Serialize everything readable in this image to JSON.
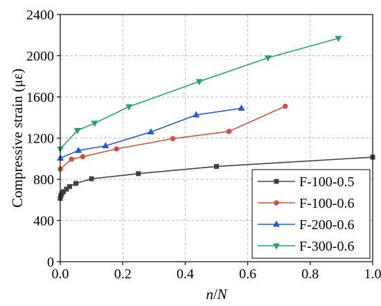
{
  "chart_data": {
    "type": "line",
    "title": "",
    "xlabel": "n/N",
    "ylabel": "Compressive strain (με)",
    "xlim": [
      0,
      1.0
    ],
    "ylim": [
      0,
      2400
    ],
    "x_ticks": [
      0.0,
      0.2,
      0.4,
      0.6,
      0.8,
      1.0
    ],
    "x_tick_labels": [
      "0.0",
      "0.2",
      "0.4",
      "0.6",
      "0.8",
      "1.0"
    ],
    "y_ticks": [
      0,
      400,
      800,
      1200,
      1600,
      2000,
      2400
    ],
    "y_tick_labels": [
      "0",
      "400",
      "800",
      "1200",
      "1600",
      "2000",
      "2400"
    ],
    "grid": true,
    "legend_position": "bottom-right",
    "series": [
      {
        "name": "F-100-0.5",
        "color": "#404040",
        "marker": "square",
        "x": [
          0.0,
          0.002,
          0.005,
          0.01,
          0.02,
          0.03,
          0.05,
          0.1,
          0.25,
          0.5,
          1.0
        ],
        "y": [
          615,
          640,
          660,
          680,
          705,
          730,
          760,
          805,
          855,
          925,
          1015
        ]
      },
      {
        "name": "F-100-0.6",
        "color": "#d2503c",
        "marker": "circle",
        "x": [
          0.0,
          0.036,
          0.072,
          0.18,
          0.36,
          0.54,
          0.72
        ],
        "y": [
          900,
          995,
          1020,
          1095,
          1195,
          1265,
          1510
        ]
      },
      {
        "name": "F-200-0.6",
        "color": "#1e5ae6",
        "marker": "triangle-up",
        "x": [
          0.0,
          0.058,
          0.145,
          0.29,
          0.435,
          0.58
        ],
        "y": [
          1005,
          1080,
          1125,
          1260,
          1425,
          1490
        ]
      },
      {
        "name": "F-300-0.6",
        "color": "#23a46a",
        "marker": "triangle-down",
        "x": [
          0.0,
          0.055,
          0.11,
          0.22,
          0.445,
          0.665,
          0.89
        ],
        "y": [
          1095,
          1275,
          1345,
          1505,
          1750,
          1980,
          2170
        ]
      }
    ]
  }
}
